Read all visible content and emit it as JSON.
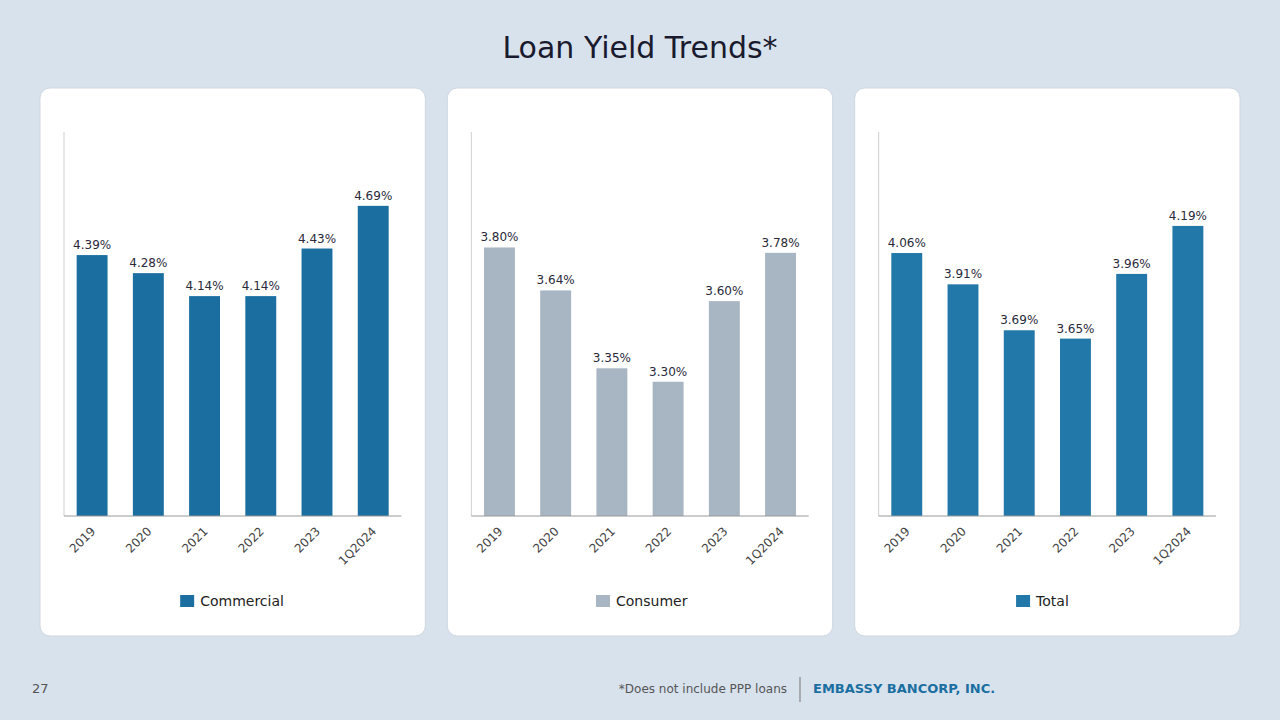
{
  "title": "Loan Yield Trends*",
  "annotations": [
    "27",
    "*Does not include PPP loans",
    "EMBASSY BANCORP, INC."
  ],
  "chart_data": [
    {
      "type": "bar",
      "categories": [
        "2019",
        "2020",
        "2021",
        "2022",
        "2023",
        "1Q2024"
      ],
      "series": [
        {
          "name": "Commercial",
          "color": "#1b6fa0",
          "values": [
            4.39,
            4.28,
            4.14,
            4.14,
            4.43,
            4.69
          ],
          "value_labels": [
            "4.39%",
            "4.28%",
            "4.14%",
            "4.14%",
            "4.43%",
            "4.69%"
          ]
        }
      ],
      "ylim": [
        2.8,
        5.14
      ],
      "yticks": [],
      "tick_labels": "x",
      "grid": false,
      "data_labels": true,
      "legend": "bottom"
    },
    {
      "type": "bar",
      "categories": [
        "2019",
        "2020",
        "2021",
        "2022",
        "2023",
        "1Q2024"
      ],
      "series": [
        {
          "name": "Consumer",
          "color": "#a8b5c2",
          "values": [
            3.8,
            3.64,
            3.35,
            3.3,
            3.6,
            3.78
          ],
          "value_labels": [
            "3.80%",
            "3.64%",
            "3.35%",
            "3.30%",
            "3.60%",
            "3.78%"
          ]
        }
      ],
      "ylim": [
        2.8,
        4.23
      ],
      "yticks": [],
      "tick_labels": "x",
      "grid": false,
      "data_labels": true,
      "legend": "bottom"
    },
    {
      "type": "bar",
      "categories": [
        "2019",
        "2020",
        "2021",
        "2022",
        "2023",
        "1Q2024"
      ],
      "series": [
        {
          "name": "Total",
          "color": "#2278a8",
          "values": [
            4.06,
            3.91,
            3.69,
            3.65,
            3.96,
            4.19
          ],
          "value_labels": [
            "4.06%",
            "3.91%",
            "3.69%",
            "3.65%",
            "3.96%",
            "4.19%"
          ]
        }
      ],
      "ylim": [
        2.8,
        4.64
      ],
      "yticks": [],
      "tick_labels": "x",
      "grid": false,
      "data_labels": true,
      "legend": "bottom"
    }
  ]
}
